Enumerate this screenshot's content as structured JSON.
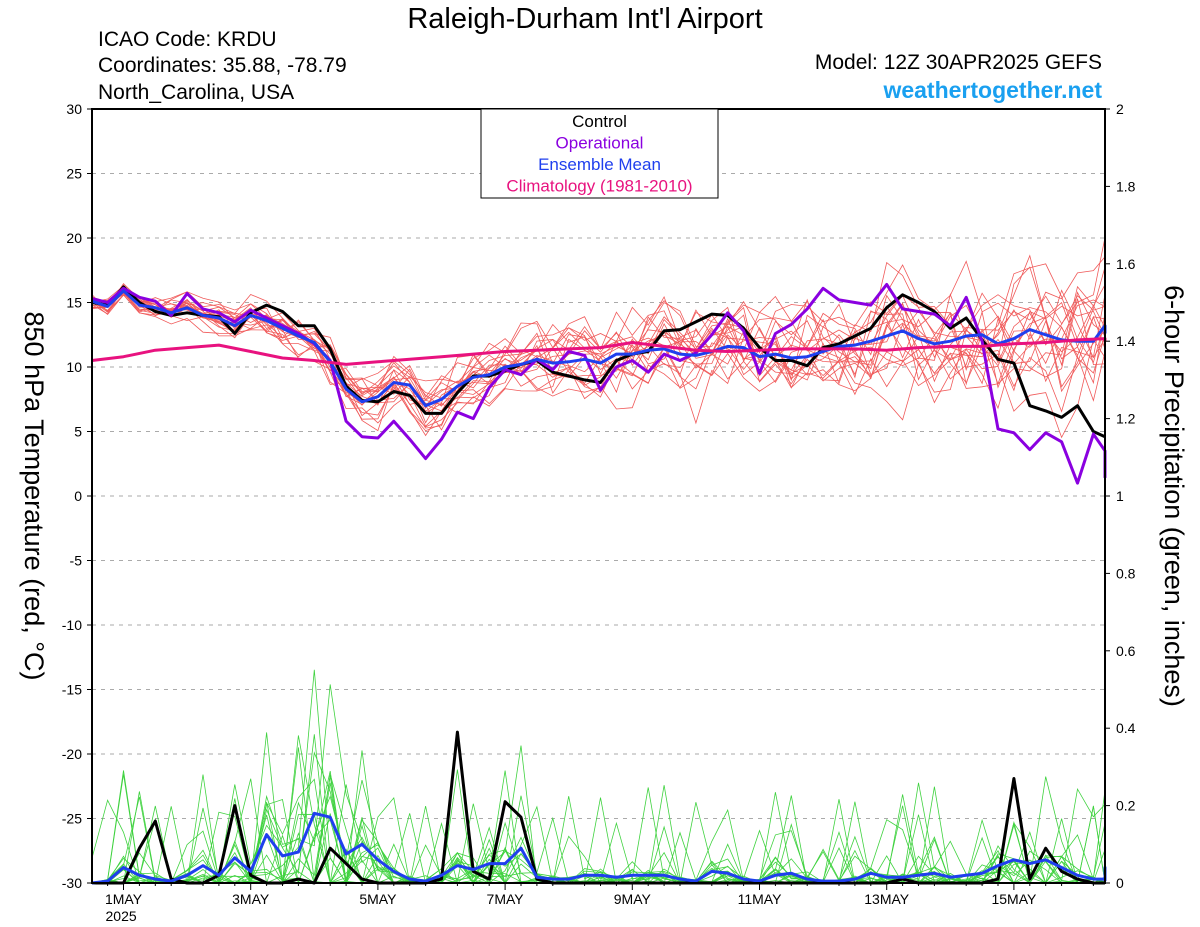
{
  "header": {
    "title": "Raleigh-Durham Int'l Airport",
    "icao": "ICAO Code: KRDU",
    "coords": "Coordinates: 35.88, -78.79",
    "location": "North_Carolina, USA",
    "model": "Model: 12Z 30APR2025 GEFS",
    "site": "weathertogether.net"
  },
  "chart_data": {
    "type": "line",
    "y_left": {
      "label": "850 hPa Temperature (red, °C)",
      "range": [
        -30,
        30
      ],
      "ticks": [
        "30",
        "25",
        "20",
        "15",
        "10",
        "5",
        "0",
        "-5",
        "-10",
        "-15",
        "-20",
        "-25",
        "-30"
      ]
    },
    "y_right": {
      "label": "6-hour Precipitation (green, inches)",
      "range": [
        0,
        2
      ],
      "ticks": [
        "2",
        "1.8",
        "1.6",
        "1.4",
        "1.2",
        "1",
        "0.8",
        "0.6",
        "0.4",
        "0.2",
        "0"
      ]
    },
    "x": {
      "start": "2025-05-01T00Z",
      "end": "2025-05-16T18Z",
      "unit": "days since 1MAY",
      "tick_labels": [
        [
          "1MAY",
          "2025"
        ],
        [
          "3MAY"
        ],
        [
          "5MAY"
        ],
        [
          "7MAY"
        ],
        [
          "9MAY"
        ],
        [
          "11MAY"
        ],
        [
          "13MAY"
        ],
        [
          "15MAY"
        ]
      ],
      "tick_days": [
        0,
        2,
        4,
        6,
        8,
        10,
        12,
        14
      ]
    },
    "grid": "dashed horizontal",
    "legend": {
      "placement": "top-center",
      "entries": [
        {
          "name": "Control",
          "color": "#000000"
        },
        {
          "name": "Operational",
          "color": "#8a00e0"
        },
        {
          "name": "Ensemble Mean",
          "color": "#1f3fee"
        },
        {
          "name": "Climatology (1981-2010)",
          "color": "#e8127f"
        }
      ]
    },
    "colors": {
      "members_temp": "#f05a5a",
      "members_precip": "#3fd23f"
    },
    "series": [
      {
        "name": "Control",
        "kind": "temperature",
        "color": "#000000",
        "x": [
          -0.5,
          -0.25,
          0,
          0.25,
          0.5,
          0.75,
          1,
          1.25,
          1.5,
          1.75,
          2,
          2.25,
          2.5,
          2.75,
          3,
          3.25,
          3.5,
          3.75,
          4,
          4.25,
          4.5,
          4.75,
          5,
          5.25,
          5.5,
          5.75,
          6,
          6.25,
          6.5,
          6.75,
          7,
          7.25,
          7.5,
          7.75,
          8,
          8.25,
          8.5,
          8.75,
          9,
          9.25,
          9.5,
          9.75,
          10,
          10.25,
          10.5,
          10.75,
          11,
          11.25,
          11.5,
          11.75,
          12,
          12.25,
          12.5,
          12.75,
          13,
          13.25,
          13.5,
          13.75,
          14,
          14.25,
          14.5,
          14.75,
          15,
          15.25,
          15.5,
          15.75,
          16,
          16.25
        ],
        "y": [
          15,
          14.8,
          16.2,
          15,
          14.3,
          14,
          14.2,
          14,
          13.9,
          12.6,
          14.2,
          14.8,
          14.3,
          13.2,
          13.2,
          11.4,
          8.5,
          7.4,
          7.3,
          8.1,
          7.8,
          6.4,
          6.4,
          8,
          9.3,
          9.3,
          9.7,
          10.2,
          10.5,
          9.6,
          9.3,
          9,
          8.8,
          10.5,
          11,
          11.2,
          12.8,
          12.9,
          13.5,
          14.1,
          14,
          13,
          11.5,
          10.5,
          10.5,
          10.1,
          11.5,
          11.8,
          12.4,
          13,
          14.6,
          15.6,
          15,
          14.3,
          13,
          13.8,
          12.1,
          10.6,
          10.3,
          7,
          6.6,
          6.1,
          7,
          5,
          4.6,
          4.6,
          4.6,
          4.6
        ]
      },
      {
        "name": "Operational",
        "kind": "temperature",
        "color": "#8a00e0",
        "x": [
          -0.5,
          -0.25,
          0,
          0.25,
          0.5,
          0.75,
          1,
          1.25,
          1.5,
          1.75,
          2,
          2.25,
          2.5,
          2.75,
          3,
          3.25,
          3.5,
          3.75,
          4,
          4.25,
          4.5,
          4.75,
          5,
          5.25,
          5.5,
          5.75,
          6,
          6.25,
          6.5,
          6.75,
          7,
          7.25,
          7.5,
          7.75,
          8,
          8.25,
          8.5,
          8.75,
          9,
          9.25,
          9.5,
          9.75,
          10,
          10.25,
          10.5,
          10.75,
          11,
          11.25,
          11.5,
          11.75,
          12,
          12.25,
          12.5,
          12.75,
          13,
          13.25,
          13.5,
          13.75,
          14,
          14.25,
          14.5,
          14.75,
          15,
          15.25,
          15.5,
          15.75,
          16,
          16.25
        ],
        "y": [
          15.3,
          15,
          16.1,
          15.4,
          15.1,
          14,
          15.7,
          14.5,
          14.2,
          13.5,
          14.4,
          13.8,
          13.2,
          12.6,
          11.8,
          10.5,
          5.8,
          4.6,
          4.5,
          5.8,
          4.4,
          2.9,
          4.4,
          6.5,
          6,
          8.4,
          9.8,
          9.4,
          10.6,
          9.8,
          11.2,
          10.9,
          8.2,
          10,
          10.5,
          9.6,
          11,
          10.5,
          11.1,
          12.5,
          14.2,
          12.8,
          9.5,
          12.6,
          13.3,
          14.5,
          16.1,
          15.2,
          15,
          14.8,
          16.4,
          14.5,
          14.3,
          14.1,
          13.2,
          15.4,
          12,
          5.2,
          4.9,
          3.6,
          4.9,
          4.2,
          1,
          4.8,
          3.5,
          2.2,
          1.6,
          1.4
        ]
      },
      {
        "name": "Ensemble Mean",
        "kind": "temperature",
        "color": "#1f3fee",
        "x": [
          -0.5,
          -0.25,
          0,
          0.25,
          0.5,
          0.75,
          1,
          1.25,
          1.5,
          1.75,
          2,
          2.25,
          2.5,
          2.75,
          3,
          3.25,
          3.5,
          3.75,
          4,
          4.25,
          4.5,
          4.75,
          5,
          5.25,
          5.5,
          5.75,
          6,
          6.25,
          6.5,
          6.75,
          7,
          7.25,
          7.5,
          7.75,
          8,
          8.25,
          8.5,
          8.75,
          9,
          9.25,
          9.5,
          9.75,
          10,
          10.25,
          10.5,
          10.75,
          11,
          11.25,
          11.5,
          11.75,
          12,
          12.25,
          12.5,
          12.75,
          13,
          13.25,
          13.5,
          13.75,
          14,
          14.25,
          14.5,
          14.75,
          15,
          15.25,
          15.5,
          15.75,
          16,
          16.25
        ],
        "y": [
          15.1,
          14.7,
          15.9,
          14.8,
          14.6,
          14.2,
          14.6,
          14,
          13.8,
          13.2,
          14,
          13.6,
          13,
          12.4,
          11.9,
          10.4,
          8.3,
          7.3,
          7.7,
          8.8,
          8.6,
          7,
          7.5,
          8.5,
          9.2,
          9.4,
          10,
          10.2,
          10.6,
          10.3,
          10.4,
          10.6,
          10.3,
          11,
          11,
          11.3,
          11.4,
          11,
          10.9,
          11.2,
          11.6,
          11.5,
          10.8,
          11,
          10.7,
          10.8,
          11.2,
          11.6,
          11.7,
          12,
          12.4,
          12.8,
          12.2,
          11.8,
          12,
          12.4,
          12.5,
          11.8,
          12.2,
          12.9,
          12.5,
          12.1,
          12,
          12,
          13.2,
          13,
          12.8,
          12.6
        ]
      },
      {
        "name": "Climatology (1981-2010)",
        "kind": "temperature",
        "color": "#e8127f",
        "x": [
          -0.5,
          0,
          0.5,
          1,
          1.5,
          2,
          2.5,
          3,
          3.5,
          4,
          4.5,
          5,
          5.5,
          6,
          6.5,
          7,
          7.5,
          8,
          8.5,
          9,
          9.5,
          10,
          10.5,
          11,
          11.5,
          12,
          12.5,
          13,
          13.5,
          14,
          14.5,
          15,
          15.5,
          16,
          16.25
        ],
        "y": [
          10.5,
          10.8,
          11.3,
          11.5,
          11.7,
          11.2,
          10.7,
          10.5,
          10.2,
          10.4,
          10.6,
          10.8,
          11,
          11.2,
          11.3,
          11.4,
          11.5,
          11.9,
          11.6,
          11.3,
          11.2,
          11.3,
          11.4,
          11.4,
          11.4,
          11.3,
          11.5,
          11.6,
          11.6,
          11.8,
          11.9,
          12.1,
          12.2,
          12.1,
          12.0
        ]
      },
      {
        "name": "Control",
        "kind": "precipitation",
        "color": "#000000",
        "x": [
          -0.5,
          -0.25,
          0,
          0.25,
          0.5,
          0.75,
          1,
          1.25,
          1.5,
          1.75,
          2,
          2.25,
          2.5,
          2.75,
          3,
          3.25,
          3.5,
          3.75,
          4,
          4.25,
          4.5,
          4.75,
          5,
          5.25,
          5.5,
          5.75,
          6,
          6.25,
          6.5,
          6.75,
          7,
          7.25,
          7.5,
          7.75,
          8,
          8.25,
          8.5,
          8.75,
          9,
          9.25,
          9.5,
          9.75,
          10,
          10.25,
          10.5,
          10.75,
          11,
          11.25,
          11.5,
          11.75,
          12,
          12.25,
          12.5,
          12.75,
          13,
          13.25,
          13.5,
          13.75,
          14,
          14.25,
          14.5,
          14.75,
          15,
          15.25,
          15.5,
          15.75,
          16,
          16.25
        ],
        "y": [
          0,
          0,
          0,
          0.09,
          0.16,
          0.01,
          0,
          0,
          0.02,
          0.2,
          0.02,
          0,
          0,
          0.01,
          0,
          0.09,
          0.05,
          0.01,
          0,
          0,
          0,
          0,
          0.01,
          0.39,
          0.03,
          0.01,
          0.21,
          0.17,
          0.01,
          0,
          0,
          0,
          0,
          0,
          0,
          0,
          0,
          0,
          0,
          0,
          0,
          0,
          0,
          0,
          0,
          0,
          0,
          0,
          0,
          0,
          0,
          0.01,
          0,
          0,
          0,
          0,
          0,
          0.01,
          0.27,
          0.01,
          0.09,
          0.03,
          0.01,
          0,
          0,
          0,
          0,
          0
        ]
      },
      {
        "name": "Ensemble Mean",
        "kind": "precipitation",
        "color": "#1f3fee",
        "x": [
          -0.5,
          -0.25,
          0,
          0.25,
          0.5,
          0.75,
          1,
          1.25,
          1.5,
          1.75,
          2,
          2.25,
          2.5,
          2.75,
          3,
          3.25,
          3.5,
          3.75,
          4,
          4.25,
          4.5,
          4.75,
          5,
          5.25,
          5.5,
          5.75,
          6,
          6.25,
          6.5,
          6.75,
          7,
          7.25,
          7.5,
          7.75,
          8,
          8.25,
          8.5,
          8.75,
          9,
          9.25,
          9.5,
          9.75,
          10,
          10.25,
          10.5,
          10.75,
          11,
          11.25,
          11.5,
          11.75,
          12,
          12.25,
          12.5,
          12.75,
          13,
          13.25,
          13.5,
          13.75,
          14,
          14.25,
          14.5,
          14.75,
          15,
          15.25,
          15.5,
          15.75,
          16,
          16.25
        ],
        "y": [
          0,
          0.005,
          0.04,
          0.02,
          0.01,
          0.005,
          0.02,
          0.045,
          0.02,
          0.065,
          0.03,
          0.125,
          0.07,
          0.08,
          0.18,
          0.17,
          0.075,
          0.1,
          0.06,
          0.03,
          0.01,
          0.005,
          0.02,
          0.045,
          0.035,
          0.05,
          0.05,
          0.09,
          0.015,
          0.01,
          0.01,
          0.02,
          0.02,
          0.015,
          0.02,
          0.02,
          0.02,
          0.01,
          0.005,
          0.03,
          0.025,
          0.01,
          0.005,
          0.02,
          0.025,
          0.01,
          0.005,
          0.005,
          0.01,
          0.025,
          0.015,
          0.015,
          0.02,
          0.025,
          0.015,
          0.02,
          0.025,
          0.045,
          0.06,
          0.05,
          0.06,
          0.04,
          0.02,
          0.01,
          0.01,
          0.04,
          0.01,
          0.005
        ]
      }
    ]
  }
}
